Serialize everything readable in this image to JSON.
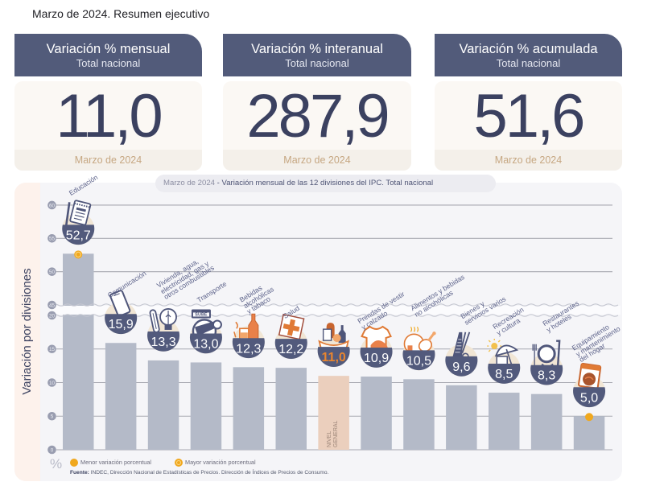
{
  "page": {
    "title": "Marzo de 2024. Resumen ejecutivo"
  },
  "cards": [
    {
      "title": "Variación % mensual",
      "subtitle": "Total nacional",
      "value": "11,0",
      "period": "Marzo de 2024"
    },
    {
      "title": "Variación % interanual",
      "subtitle": "Total nacional",
      "value": "287,9",
      "period": "Marzo de 2024"
    },
    {
      "title": "Variación % acumulada",
      "subtitle": "Total nacional",
      "value": "51,6",
      "period": "Marzo de 2024"
    }
  ],
  "chart_panel": {
    "side_label": "Variación por divisiones",
    "title_period": "Marzo de 2024",
    "title_rest": "- Variación mensual de las 12 divisiones del IPC. Total nacional",
    "unit_symbol": "%",
    "legend": [
      {
        "label": "Menor variación porcentual",
        "marker": "dot"
      },
      {
        "label": "Mayor variación porcentual",
        "marker": "ring"
      }
    ],
    "source_label": "Fuente:",
    "source_text": "INDEC, Dirección Nacional de Estadísticas de Precios. Dirección de Índices de Precios de Consumo.",
    "transport_icon_text": "SUBE"
  },
  "chart_data": {
    "type": "bar",
    "title": "Marzo de 2024 - Variación mensual de las 12 divisiones del IPC. Total nacional",
    "xlabel": "",
    "ylabel": "Variación por divisiones",
    "unit": "%",
    "categories": [
      "Educación",
      "Comunicación",
      "Vivienda, agua,\nelectricidad, gas y\notros combustibles",
      "Transporte",
      "Bebidas\nalcohólicas\ny tabaco",
      "Salud",
      "NIVEL\nGENERAL",
      "Prendas de vestir\ny calzado",
      "Alimentos y bebidas\nno alcohólicas",
      "Bienes y\nservicios varios",
      "Recreación\ny cultura",
      "Restaurantes\ny hoteles",
      "Equipamiento\ny mantenimiento\ndel hogar"
    ],
    "values": [
      52.7,
      15.9,
      13.3,
      13.0,
      12.3,
      12.2,
      11.0,
      10.9,
      10.5,
      9.6,
      8.5,
      8.3,
      5.0
    ],
    "value_labels": [
      "52,7",
      "15,9",
      "13,3",
      "13,0",
      "12,3",
      "12,2",
      "11,0",
      "10,9",
      "10,5",
      "9,6",
      "8,5",
      "8,3",
      "5,0"
    ],
    "icons": [
      "book-icon",
      "phone-icon",
      "tools-bulb-icon",
      "bus-card-icon",
      "bottle-glass-icon",
      "medical-cross-icon",
      "basket-icon",
      "tshirt-icon",
      "food-chicken-icon",
      "comb-scissors-icon",
      "umbrella-sun-icon",
      "plate-cutlery-icon",
      "washing-machine-icon"
    ],
    "highlight": [
      false,
      false,
      false,
      false,
      false,
      false,
      true,
      false,
      false,
      false,
      false,
      false,
      false
    ],
    "ylim": [
      0,
      60
    ],
    "axis_break": [
      20,
      45
    ],
    "yticks": [
      0,
      5,
      10,
      15,
      20,
      45,
      50,
      55,
      60
    ],
    "grid": true,
    "max_marker_index": 0,
    "min_marker_index": 12,
    "legend_position": "bottom-left"
  },
  "colors": {
    "header_bg": "#525b7a",
    "value_text": "#3b4160",
    "accent_orange": "#f0a81e",
    "bar": "#b4bac8",
    "bar_highlight": "#ebcfbd",
    "badge_navy": "#525a7c",
    "badge_beige": "#f1e6d5",
    "highlight_value": "#e9852e"
  }
}
